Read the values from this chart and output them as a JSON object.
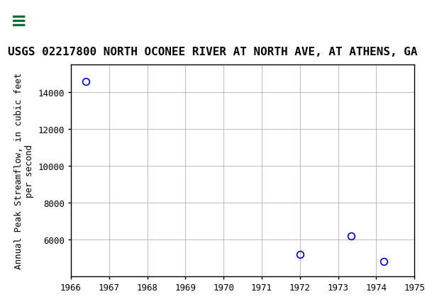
{
  "title": "USGS 02217800 NORTH OCONEE RIVER AT NORTH AVE, AT ATHENS, GA",
  "ylabel_line1": "Annual Peak Streamflow, in cubic feet",
  "ylabel_line2": "per second",
  "x_data": [
    1966.4,
    1972.0,
    1973.35,
    1974.2
  ],
  "y_data": [
    14600,
    5200,
    6200,
    4800
  ],
  "xlim": [
    1966,
    1975
  ],
  "ylim": [
    4000,
    15500
  ],
  "xticks": [
    1966,
    1967,
    1968,
    1969,
    1970,
    1971,
    1972,
    1973,
    1974,
    1975
  ],
  "yticks": [
    6000,
    8000,
    10000,
    12000,
    14000
  ],
  "marker_color": "#0000CC",
  "marker_size": 7,
  "marker_style": "o",
  "grid_color": "#BBBBBB",
  "background_color": "#FFFFFF",
  "plot_bg_color": "#FFFFFF",
  "header_bg_color": "#1A6B3C",
  "title_fontsize": 11.5,
  "ylabel_fontsize": 9,
  "tick_fontsize": 9,
  "usgs_text": "USGS",
  "header_logo_fontsize": 16
}
